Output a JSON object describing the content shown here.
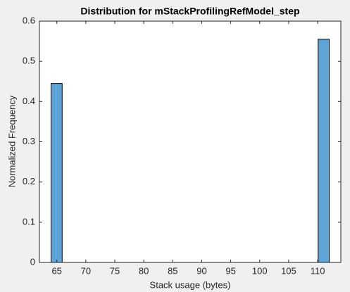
{
  "chart_data": {
    "type": "histogram",
    "title": "Distribution for mStackProfilingRefModel_step",
    "x_label": "Stack usage (bytes)",
    "y_label": "Normalized Frequency",
    "bins": [
      64,
      65.92,
      67.84,
      69.76,
      71.68,
      73.6,
      75.52,
      77.44,
      79.36,
      81.28,
      83.2,
      85.12,
      87.04,
      88.96,
      90.88,
      92.8,
      94.72,
      96.64,
      98.56,
      100.48,
      102.4,
      104.32,
      106.24,
      108.16,
      110.08,
      112
    ],
    "values": [
      0.445,
      0,
      0,
      0,
      0,
      0,
      0,
      0,
      0,
      0,
      0,
      0,
      0,
      0,
      0,
      0,
      0,
      0,
      0,
      0,
      0,
      0,
      0,
      0,
      0.555
    ],
    "color": "#5fa4d6",
    "xlim": [
      62,
      114
    ],
    "xticks": [
      65,
      70,
      75,
      80,
      85,
      90,
      95,
      100,
      105,
      110
    ],
    "ylim": [
      0,
      0.6
    ],
    "yticks": [
      0,
      0.1,
      0.2,
      0.3,
      0.4,
      0.5,
      0.6
    ]
  }
}
